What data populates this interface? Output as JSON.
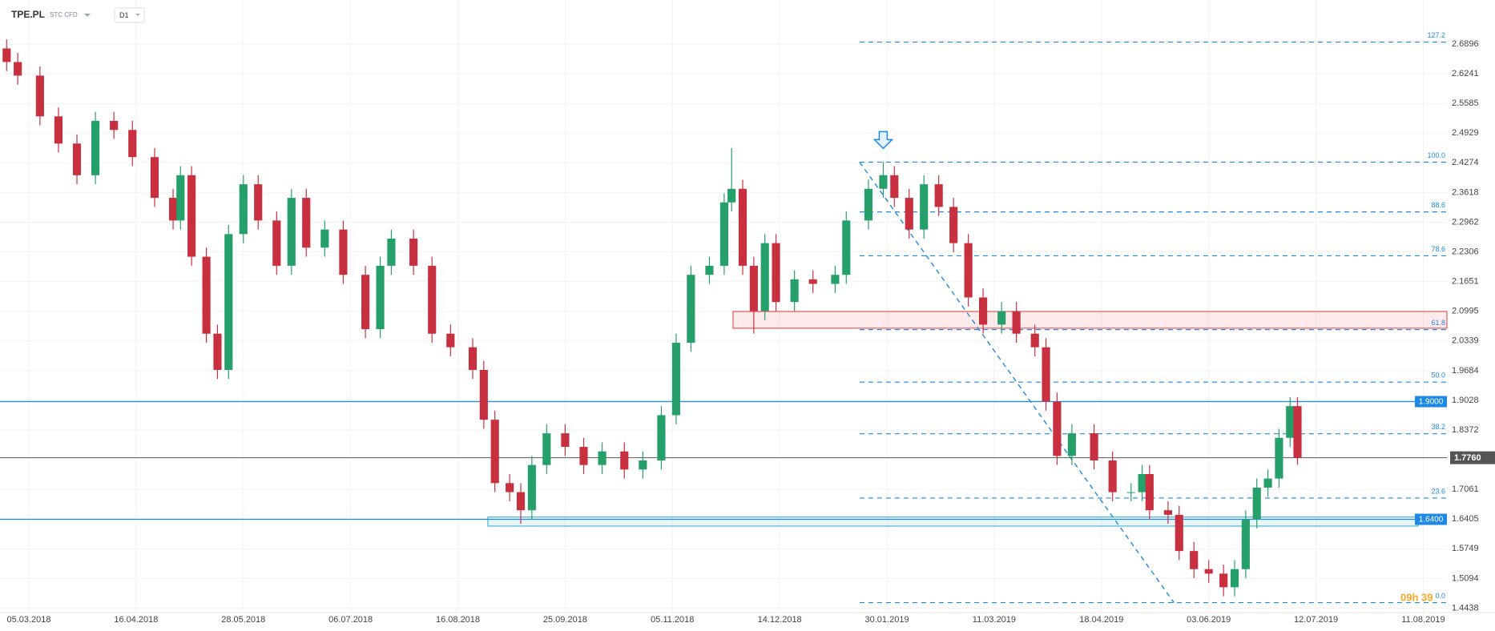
{
  "chart_data": {
    "type": "candlestick",
    "symbol": "TPE.PL",
    "instrument": "STC CFD",
    "interval": "D1",
    "timer": "09h 39",
    "up_color": "#26a06b",
    "down_color": "#c8303f",
    "grid": true,
    "x": [
      -6,
      -3,
      3,
      8,
      13,
      18,
      23,
      28,
      34,
      39,
      41,
      44,
      48,
      51,
      54,
      58,
      62,
      67,
      71,
      75,
      80,
      85,
      91,
      95,
      98,
      104,
      109,
      114,
      120,
      123,
      126,
      130,
      133,
      136,
      140,
      145,
      150,
      155,
      161,
      166,
      171,
      175,
      179,
      184,
      188,
      190,
      193,
      196,
      199,
      202,
      207,
      212,
      218,
      221,
      227,
      231,
      234,
      238,
      242,
      246,
      250,
      254,
      258,
      263,
      267,
      272,
      275,
      278,
      282,
      288,
      293,
      298,
      301,
      303,
      308,
      311,
      315,
      319,
      323,
      326,
      329,
      332,
      335,
      338,
      341,
      343
    ],
    "open": [
      2.68,
      2.65,
      2.62,
      2.53,
      2.47,
      2.4,
      2.52,
      2.5,
      2.44,
      2.35,
      2.3,
      2.4,
      2.22,
      2.05,
      1.97,
      2.27,
      2.38,
      2.3,
      2.2,
      2.35,
      2.24,
      2.28,
      2.18,
      2.06,
      2.2,
      2.26,
      2.2,
      2.05,
      2.02,
      1.97,
      1.86,
      1.72,
      1.7,
      1.66,
      1.76,
      1.83,
      1.8,
      1.76,
      1.79,
      1.75,
      1.77,
      1.87,
      2.03,
      2.18,
      2.2,
      2.34,
      2.37,
      2.2,
      2.1,
      2.25,
      2.12,
      2.17,
      2.16,
      2.18,
      2.3,
      2.37,
      2.4,
      2.35,
      2.28,
      2.38,
      2.33,
      2.25,
      2.13,
      2.07,
      2.1,
      2.05,
      2.02,
      1.9,
      1.78,
      1.83,
      1.77,
      1.7,
      1.7,
      1.74,
      1.66,
      1.65,
      1.57,
      1.53,
      1.52,
      1.49,
      1.53,
      1.64,
      1.71,
      1.73,
      1.82,
      1.89
    ],
    "high": [
      2.7,
      2.67,
      2.64,
      2.55,
      2.49,
      2.54,
      2.54,
      2.52,
      2.46,
      2.37,
      2.42,
      2.42,
      2.24,
      2.07,
      2.29,
      2.4,
      2.4,
      2.32,
      2.37,
      2.37,
      2.3,
      2.3,
      2.2,
      2.22,
      2.28,
      2.28,
      2.22,
      2.07,
      2.04,
      1.99,
      1.88,
      1.74,
      1.72,
      1.78,
      1.85,
      1.85,
      1.82,
      1.81,
      1.81,
      1.79,
      1.89,
      2.05,
      2.2,
      2.22,
      2.36,
      2.46,
      2.39,
      2.22,
      2.27,
      2.27,
      2.19,
      2.19,
      2.2,
      2.32,
      2.39,
      2.43,
      2.42,
      2.37,
      2.4,
      2.4,
      2.35,
      2.27,
      2.15,
      2.12,
      2.12,
      2.07,
      2.04,
      1.92,
      1.85,
      1.85,
      1.79,
      1.72,
      1.76,
      1.76,
      1.68,
      1.67,
      1.59,
      1.55,
      1.54,
      1.55,
      1.66,
      1.73,
      1.75,
      1.84,
      1.91,
      1.91
    ],
    "low": [
      2.63,
      2.6,
      2.51,
      2.45,
      2.38,
      2.38,
      2.48,
      2.42,
      2.33,
      2.28,
      2.28,
      2.2,
      2.03,
      1.95,
      1.95,
      2.25,
      2.28,
      2.18,
      2.18,
      2.22,
      2.22,
      2.16,
      2.04,
      2.04,
      2.18,
      2.18,
      2.03,
      2.0,
      1.95,
      1.84,
      1.7,
      1.68,
      1.63,
      1.64,
      1.74,
      1.78,
      1.74,
      1.74,
      1.73,
      1.73,
      1.75,
      1.85,
      2.01,
      2.16,
      2.18,
      2.32,
      2.18,
      2.05,
      2.08,
      2.1,
      2.1,
      2.14,
      2.14,
      2.16,
      2.28,
      2.35,
      2.33,
      2.26,
      2.26,
      2.31,
      2.23,
      2.11,
      2.05,
      2.05,
      2.03,
      2.0,
      1.88,
      1.76,
      1.76,
      1.75,
      1.68,
      1.68,
      1.68,
      1.64,
      1.63,
      1.55,
      1.51,
      1.5,
      1.47,
      1.47,
      1.51,
      1.62,
      1.69,
      1.71,
      1.8,
      1.76
    ],
    "close": [
      2.65,
      2.62,
      2.53,
      2.47,
      2.4,
      2.52,
      2.5,
      2.44,
      2.35,
      2.3,
      2.4,
      2.22,
      2.05,
      1.97,
      2.27,
      2.38,
      2.3,
      2.2,
      2.35,
      2.24,
      2.28,
      2.18,
      2.06,
      2.2,
      2.26,
      2.2,
      2.05,
      2.02,
      1.97,
      1.86,
      1.72,
      1.7,
      1.66,
      1.76,
      1.83,
      1.8,
      1.76,
      1.79,
      1.75,
      1.77,
      1.87,
      2.03,
      2.18,
      2.2,
      2.34,
      2.37,
      2.2,
      2.1,
      2.25,
      2.12,
      2.17,
      2.16,
      2.18,
      2.3,
      2.37,
      2.4,
      2.35,
      2.28,
      2.38,
      2.33,
      2.25,
      2.13,
      2.07,
      2.1,
      2.05,
      2.02,
      1.9,
      1.78,
      1.83,
      1.77,
      1.7,
      1.7,
      1.74,
      1.66,
      1.65,
      1.57,
      1.53,
      1.52,
      1.49,
      1.53,
      1.64,
      1.71,
      1.73,
      1.82,
      1.89,
      1.776
    ],
    "xlim": [
      -7.8,
      383.4
    ],
    "ylim": [
      1.434,
      2.787
    ],
    "yticks": [
      2.6896,
      2.6241,
      2.5585,
      2.4929,
      2.4274,
      2.3618,
      2.2962,
      2.2306,
      2.1651,
      2.0995,
      2.0339,
      1.9684,
      1.9028,
      1.8372,
      1.7061,
      1.6405,
      1.5749,
      1.5094,
      1.4438
    ],
    "xticks": [
      {
        "value": 0,
        "label": "05.03.2018"
      },
      {
        "value": 29,
        "label": "16.04.2018"
      },
      {
        "value": 58,
        "label": "28.05.2018"
      },
      {
        "value": 87,
        "label": "06.07.2018"
      },
      {
        "value": 116,
        "label": "16.08.2018"
      },
      {
        "value": 145,
        "label": "25.09.2018"
      },
      {
        "value": 174,
        "label": "05.11.2018"
      },
      {
        "value": 203,
        "label": "14.12.2018"
      },
      {
        "value": 232,
        "label": "30.01.2019"
      },
      {
        "value": 261,
        "label": "11.03.2019"
      },
      {
        "value": 290,
        "label": "18.04.2019"
      },
      {
        "value": 319,
        "label": "03.06.2019"
      },
      {
        "value": 348,
        "label": "12.07.2019"
      },
      {
        "value": 377,
        "label": "11.08.2019"
      }
    ],
    "levels": [
      {
        "value": 1.9,
        "label": "1.9000",
        "color": "#1e88e5"
      },
      {
        "value": 1.64,
        "label": "1.6400",
        "color": "#1e88e5"
      }
    ],
    "last_price": {
      "value": 1.776,
      "label": "1.7760",
      "color": "#555555"
    },
    "zones": [
      {
        "x": [
          190.4,
          383.4
        ],
        "y": [
          2.062,
          2.099
        ],
        "color": "#e53935"
      },
      {
        "x": [
          124.1,
          375.6
        ],
        "y": [
          1.625,
          1.645
        ],
        "color": "#26a6c9"
      }
    ],
    "fib": {
      "color": "#1e88e5",
      "x": [
        224.6,
        383.4
      ],
      "trend_x": [
        224.6,
        309.6
      ],
      "trend_y": [
        2.429,
        1.456
      ],
      "levels": [
        {
          "value": 127.2,
          "label": "127.2"
        },
        {
          "value": 100,
          "label": "100.0"
        },
        {
          "value": 88.6,
          "label": "88.6"
        },
        {
          "value": 78.6,
          "label": "78.6"
        },
        {
          "value": 61.8,
          "label": "61.8"
        },
        {
          "value": 50,
          "label": "50.0"
        },
        {
          "value": 38.2,
          "label": "38.2"
        },
        {
          "value": 23.6,
          "label": "23.6"
        },
        {
          "value": 0,
          "label": "0.0"
        }
      ],
      "prices": [
        2.694,
        2.429,
        2.319,
        2.222,
        2.059,
        1.943,
        1.829,
        1.687,
        1.456
      ]
    },
    "signal": {
      "x": 231,
      "y": 2.475
    }
  }
}
